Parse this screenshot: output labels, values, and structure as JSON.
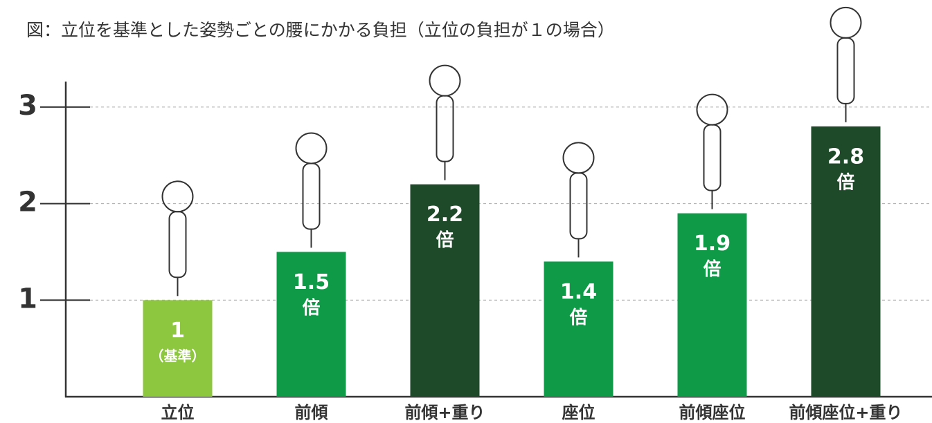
{
  "chart_data": {
    "type": "bar",
    "title": "図：立位を基準とした姿勢ごとの腰にかかる負担（立位の負担が１の場合）",
    "categories": [
      "立位",
      "前傾",
      "前傾+重り",
      "座位",
      "前傾座位",
      "前傾座位+重り"
    ],
    "values": [
      1,
      1.5,
      2.2,
      1.4,
      1.9,
      2.8
    ],
    "value_labels": [
      [
        "1",
        "（基準）"
      ],
      [
        "1.5",
        "倍"
      ],
      [
        "2.2",
        "倍"
      ],
      [
        "1.4",
        "倍"
      ],
      [
        "1.9",
        "倍"
      ],
      [
        "2.8",
        "倍"
      ]
    ],
    "colors": [
      "#8dc63f",
      "#0f9a48",
      "#1e4a2a",
      "#0f9a48",
      "#0f9a48",
      "#1e4a2a"
    ],
    "ylim": [
      0,
      3.3
    ],
    "yticks": [
      1,
      2,
      3
    ],
    "grid": true
  }
}
